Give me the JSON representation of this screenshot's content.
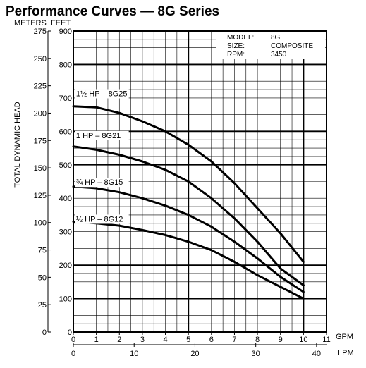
{
  "chart_data": {
    "type": "line",
    "title": "Performance Curves — 8G Series",
    "ylabel": "TOTAL DYNAMIC HEAD",
    "y_units": {
      "left": "METERS",
      "right": "FEET"
    },
    "x_units": {
      "primary": "GPM",
      "secondary": "LPM"
    },
    "xlim": [
      0,
      11
    ],
    "ylim_feet": [
      0,
      900
    ],
    "ylim_meters": [
      0,
      275
    ],
    "x_ticks": [
      "0",
      "1",
      "2",
      "3",
      "4",
      "5",
      "6",
      "7",
      "8",
      "9",
      "10",
      "11"
    ],
    "lpm_ticks": [
      "0",
      "10",
      "20",
      "30",
      "40"
    ],
    "feet_ticks": [
      "0",
      "100",
      "200",
      "300",
      "400",
      "500",
      "600",
      "700",
      "800",
      "900"
    ],
    "meter_ticks": [
      "0",
      "25",
      "50",
      "75",
      "100",
      "125",
      "150",
      "175",
      "200",
      "225",
      "250",
      "275"
    ],
    "info": [
      {
        "key": "MODEL:",
        "value": "8G"
      },
      {
        "key": "SIZE:",
        "value": "COMPOSITE"
      },
      {
        "key": "RPM:",
        "value": "3450"
      }
    ],
    "grid": true,
    "series": [
      {
        "name": "1½ HP – 8G25",
        "x": [
          0,
          1,
          2,
          3,
          4,
          5,
          6,
          7,
          8,
          9,
          10
        ],
        "y": [
          675,
          672,
          655,
          630,
          600,
          560,
          510,
          445,
          370,
          295,
          210
        ]
      },
      {
        "name": "1 HP – 8G21",
        "x": [
          0,
          1,
          2,
          3,
          4,
          5,
          6,
          7,
          8,
          9,
          10
        ],
        "y": [
          555,
          545,
          530,
          510,
          485,
          450,
          400,
          340,
          270,
          190,
          140
        ]
      },
      {
        "name": "¾ HP – 8G15",
        "x": [
          0,
          1,
          2,
          3,
          4,
          5,
          6,
          7,
          8,
          9,
          10
        ],
        "y": [
          435,
          430,
          418,
          400,
          378,
          350,
          315,
          270,
          220,
          165,
          120
        ]
      },
      {
        "name": "½ HP – 8G12",
        "x": [
          0,
          1,
          2,
          3,
          4,
          5,
          6,
          7,
          8,
          9,
          10
        ],
        "y": [
          330,
          325,
          318,
          305,
          290,
          270,
          245,
          210,
          170,
          135,
          100
        ]
      }
    ]
  }
}
